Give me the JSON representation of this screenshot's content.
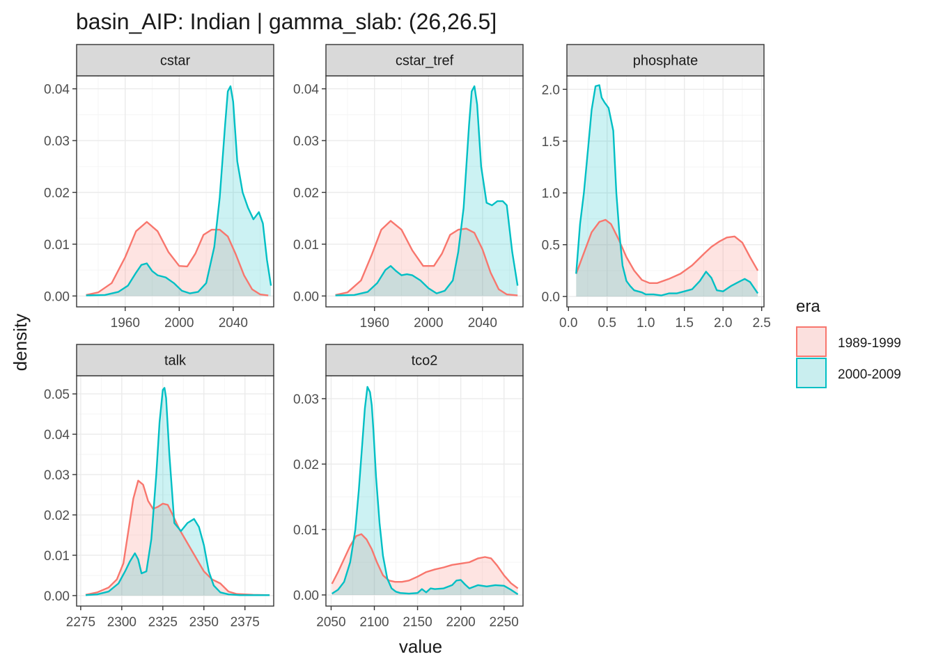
{
  "title": "basin_AIP: Indian | gamma_slab: (26,26.5]",
  "xlabel": "value",
  "ylabel": "density",
  "legend": {
    "title": "era",
    "entries": [
      {
        "label": "1989-1999",
        "line": "#F8766D",
        "fill": "#FBE0DE"
      },
      {
        "label": "2000-2009",
        "line": "#00BFC4",
        "fill": "#C9EEEF"
      }
    ]
  },
  "chart_data": [
    {
      "type": "area",
      "panel": "cstar",
      "xlim": [
        1924,
        2070
      ],
      "ylim": [
        -0.0021,
        0.0425
      ],
      "x_ticks": [
        1960,
        2000,
        2040
      ],
      "x_tick_labels": [
        "1960",
        "2000",
        "2040"
      ],
      "y_ticks": [
        0,
        0.01,
        0.02,
        0.03,
        0.04
      ],
      "y_tick_labels": [
        "0.00",
        "0.01",
        "0.02",
        "0.03",
        "0.04"
      ],
      "series": [
        {
          "name": "1989-1999",
          "x": [
            1931,
            1940,
            1950,
            1960,
            1968,
            1976,
            1984,
            1992,
            2000,
            2006,
            2012,
            2018,
            2024,
            2030,
            2036,
            2042,
            2048,
            2054,
            2060,
            2066
          ],
          "y": [
            0.0002,
            0.0007,
            0.0025,
            0.0075,
            0.0125,
            0.0143,
            0.0125,
            0.0085,
            0.0058,
            0.0057,
            0.0082,
            0.0118,
            0.0128,
            0.0128,
            0.0115,
            0.008,
            0.004,
            0.0013,
            0.0003,
            0.0001
          ]
        },
        {
          "name": "2000-2009",
          "x": [
            1931,
            1945,
            1955,
            1962,
            1968,
            1972,
            1976,
            1980,
            1984,
            1990,
            1996,
            2002,
            2008,
            2014,
            2020,
            2026,
            2030,
            2034,
            2036,
            2038,
            2040,
            2043,
            2047,
            2051,
            2055,
            2059,
            2062,
            2065,
            2068
          ],
          "y": [
            0.0001,
            0.0002,
            0.0008,
            0.002,
            0.0045,
            0.006,
            0.0063,
            0.0048,
            0.004,
            0.0036,
            0.0025,
            0.001,
            0.0005,
            0.0008,
            0.0025,
            0.0095,
            0.019,
            0.033,
            0.0395,
            0.0405,
            0.0375,
            0.026,
            0.02,
            0.017,
            0.0148,
            0.0162,
            0.014,
            0.007,
            0.002
          ]
        }
      ]
    },
    {
      "type": "area",
      "panel": "cstar_tref",
      "xlim": [
        1924,
        2070
      ],
      "ylim": [
        -0.0021,
        0.0425
      ],
      "x_ticks": [
        1960,
        2000,
        2040
      ],
      "x_tick_labels": [
        "1960",
        "2000",
        "2040"
      ],
      "y_ticks": [
        0,
        0.01,
        0.02,
        0.03,
        0.04
      ],
      "y_tick_labels": [
        "0.00",
        "0.01",
        "0.02",
        "0.03",
        "0.04"
      ],
      "series": [
        {
          "name": "1989-1999",
          "x": [
            1931,
            1940,
            1950,
            1958,
            1965,
            1972,
            1980,
            1988,
            1996,
            2004,
            2010,
            2016,
            2022,
            2028,
            2034,
            2040,
            2046,
            2052,
            2058,
            2066
          ],
          "y": [
            0.0002,
            0.0007,
            0.003,
            0.008,
            0.0128,
            0.0145,
            0.0128,
            0.0088,
            0.0058,
            0.0058,
            0.0082,
            0.0118,
            0.0128,
            0.013,
            0.0122,
            0.009,
            0.0045,
            0.0013,
            0.0003,
            0.0001
          ]
        },
        {
          "name": "2000-2009",
          "x": [
            1931,
            1945,
            1955,
            1962,
            1968,
            1972,
            1976,
            1980,
            1984,
            1988,
            1994,
            2000,
            2006,
            2012,
            2018,
            2022,
            2026,
            2030,
            2032,
            2034,
            2036,
            2039,
            2043,
            2047,
            2051,
            2055,
            2058,
            2062,
            2066
          ],
          "y": [
            0.0001,
            0.0002,
            0.0008,
            0.0025,
            0.005,
            0.0058,
            0.0048,
            0.004,
            0.0042,
            0.004,
            0.003,
            0.0015,
            0.0005,
            0.001,
            0.003,
            0.0085,
            0.017,
            0.033,
            0.0395,
            0.0405,
            0.037,
            0.025,
            0.018,
            0.0175,
            0.0183,
            0.0183,
            0.0175,
            0.0085,
            0.002
          ]
        }
      ]
    },
    {
      "type": "area",
      "panel": "phosphate",
      "xlim": [
        -0.02,
        2.53
      ],
      "ylim": [
        -0.1,
        2.13
      ],
      "x_ticks": [
        0,
        0.5,
        1,
        1.5,
        2,
        2.5
      ],
      "x_tick_labels": [
        "0.0",
        "0.5",
        "1.0",
        "1.5",
        "2.0",
        "2.5"
      ],
      "y_ticks": [
        0,
        0.5,
        1,
        1.5,
        2
      ],
      "y_tick_labels": [
        "0.0",
        "0.5",
        "1.0",
        "1.5",
        "2.0"
      ],
      "series": [
        {
          "name": "1989-1999",
          "x": [
            0.1,
            0.2,
            0.3,
            0.4,
            0.48,
            0.55,
            0.65,
            0.75,
            0.85,
            0.95,
            1.05,
            1.15,
            1.3,
            1.45,
            1.6,
            1.75,
            1.85,
            1.95,
            2.05,
            2.15,
            2.25,
            2.35,
            2.45
          ],
          "y": [
            0.22,
            0.42,
            0.62,
            0.72,
            0.74,
            0.7,
            0.55,
            0.38,
            0.25,
            0.16,
            0.13,
            0.13,
            0.17,
            0.22,
            0.3,
            0.41,
            0.48,
            0.53,
            0.57,
            0.58,
            0.52,
            0.38,
            0.25
          ]
        },
        {
          "name": "2000-2009",
          "x": [
            0.1,
            0.15,
            0.2,
            0.25,
            0.3,
            0.35,
            0.4,
            0.43,
            0.47,
            0.52,
            0.58,
            0.62,
            0.66,
            0.7,
            0.75,
            0.8,
            0.85,
            0.9,
            0.95,
            1.0,
            1.1,
            1.2,
            1.3,
            1.4,
            1.5,
            1.6,
            1.7,
            1.78,
            1.85,
            1.92,
            2.0,
            2.1,
            2.2,
            2.28,
            2.35,
            2.45
          ],
          "y": [
            0.22,
            0.7,
            1.0,
            1.4,
            1.8,
            2.03,
            2.04,
            1.92,
            1.87,
            1.82,
            1.6,
            1.0,
            0.6,
            0.3,
            0.15,
            0.1,
            0.06,
            0.05,
            0.04,
            0.02,
            0.02,
            0.01,
            0.03,
            0.03,
            0.05,
            0.07,
            0.15,
            0.24,
            0.18,
            0.06,
            0.05,
            0.1,
            0.14,
            0.17,
            0.14,
            0.03
          ]
        }
      ]
    },
    {
      "type": "area",
      "panel": "talk",
      "xlim": [
        2272.5,
        2392.5
      ],
      "ylim": [
        -0.0026,
        0.0545
      ],
      "x_ticks": [
        2275,
        2300,
        2325,
        2350,
        2375
      ],
      "x_tick_labels": [
        "2275",
        "2300",
        "2325",
        "2350",
        "2375"
      ],
      "y_ticks": [
        0,
        0.01,
        0.02,
        0.03,
        0.04,
        0.05
      ],
      "y_tick_labels": [
        "0.00",
        "0.01",
        "0.02",
        "0.03",
        "0.04",
        "0.05"
      ],
      "series": [
        {
          "name": "1989-1999",
          "x": [
            2278,
            2285,
            2292,
            2297,
            2301,
            2304,
            2307,
            2310,
            2313,
            2316,
            2319,
            2322,
            2325,
            2328,
            2331,
            2335,
            2340,
            2345,
            2350,
            2355,
            2360,
            2365,
            2370,
            2380,
            2390
          ],
          "y": [
            0.0002,
            0.0008,
            0.002,
            0.004,
            0.008,
            0.016,
            0.024,
            0.0285,
            0.0275,
            0.0235,
            0.0215,
            0.022,
            0.0228,
            0.0225,
            0.02,
            0.0165,
            0.013,
            0.0095,
            0.006,
            0.004,
            0.003,
            0.001,
            0.0004,
            0.0002,
            0.0001
          ]
        },
        {
          "name": "2000-2009",
          "x": [
            2278,
            2285,
            2292,
            2298,
            2302,
            2305,
            2308,
            2310,
            2312,
            2315,
            2318,
            2321,
            2323,
            2325,
            2326,
            2327,
            2329,
            2332,
            2336,
            2340,
            2344,
            2347,
            2350,
            2353,
            2356,
            2360,
            2365,
            2372,
            2380,
            2390
          ],
          "y": [
            0.0001,
            0.0003,
            0.001,
            0.003,
            0.006,
            0.0085,
            0.0105,
            0.009,
            0.0055,
            0.006,
            0.014,
            0.03,
            0.043,
            0.051,
            0.0515,
            0.049,
            0.035,
            0.018,
            0.016,
            0.018,
            0.019,
            0.017,
            0.0125,
            0.006,
            0.0025,
            0.0008,
            0.0003,
            0.0001,
            0.0001,
            0.0001
          ]
        }
      ]
    },
    {
      "type": "area",
      "panel": "tco2",
      "xlim": [
        2044,
        2272
      ],
      "ylim": [
        -0.0017,
        0.0335
      ],
      "x_ticks": [
        2050,
        2100,
        2150,
        2200,
        2250
      ],
      "x_tick_labels": [
        "2050",
        "2100",
        "2150",
        "2200",
        "2250"
      ],
      "y_ticks": [
        0,
        0.01,
        0.02,
        0.03
      ],
      "y_tick_labels": [
        "0.00",
        "0.01",
        "0.02",
        "0.03"
      ],
      "series": [
        {
          "name": "1989-1999",
          "x": [
            2051,
            2058,
            2065,
            2072,
            2079,
            2085,
            2091,
            2097,
            2103,
            2110,
            2117,
            2124,
            2132,
            2140,
            2150,
            2160,
            2170,
            2180,
            2190,
            2200,
            2210,
            2220,
            2228,
            2235,
            2242,
            2250,
            2258,
            2266
          ],
          "y": [
            0.0017,
            0.0035,
            0.0055,
            0.0075,
            0.009,
            0.0093,
            0.0085,
            0.007,
            0.005,
            0.003,
            0.0022,
            0.002,
            0.002,
            0.0022,
            0.0028,
            0.0035,
            0.0039,
            0.0042,
            0.0046,
            0.0048,
            0.005,
            0.0056,
            0.0058,
            0.0056,
            0.0045,
            0.003,
            0.0018,
            0.001
          ]
        },
        {
          "name": "2000-2009",
          "x": [
            2051,
            2058,
            2065,
            2072,
            2078,
            2082,
            2086,
            2089,
            2092,
            2095,
            2097,
            2099,
            2102,
            2106,
            2110,
            2115,
            2120,
            2125,
            2130,
            2140,
            2150,
            2155,
            2160,
            2165,
            2170,
            2180,
            2190,
            2195,
            2200,
            2205,
            2210,
            2220,
            2230,
            2240,
            2250,
            2258,
            2266
          ],
          "y": [
            0.0002,
            0.0008,
            0.002,
            0.005,
            0.01,
            0.016,
            0.023,
            0.0285,
            0.0318,
            0.031,
            0.029,
            0.025,
            0.018,
            0.011,
            0.006,
            0.0025,
            0.001,
            0.0005,
            0.0003,
            0.0002,
            0.0003,
            0.0009,
            0.0004,
            0.001,
            0.0009,
            0.001,
            0.0015,
            0.0022,
            0.0023,
            0.0016,
            0.001,
            0.0015,
            0.0013,
            0.0015,
            0.0014,
            0.0008,
            0.0001
          ]
        }
      ]
    }
  ]
}
